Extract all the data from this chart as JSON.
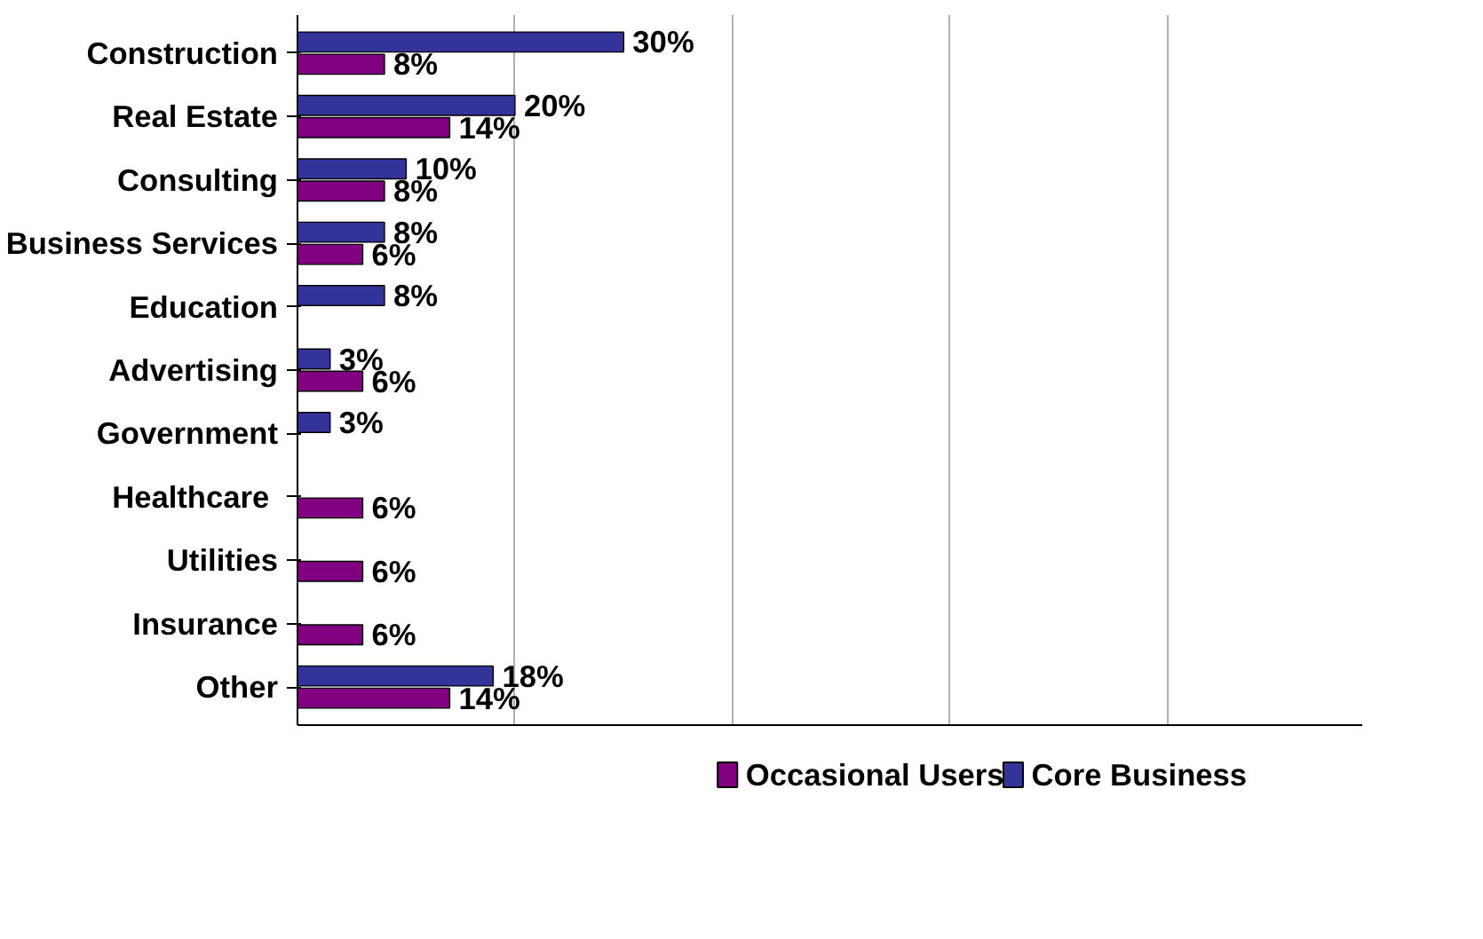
{
  "chart_data": {
    "type": "bar",
    "orientation": "horizontal",
    "categories": [
      "Construction",
      "Real Estate",
      "Consulting",
      "Business Services",
      "Education",
      "Advertising",
      "Government",
      "Healthcare ",
      "Utilities",
      "Insurance",
      "Other"
    ],
    "series": [
      {
        "name": "Occasional Users",
        "color": "#800080",
        "values": [
          8,
          14,
          8,
          6,
          null,
          6,
          null,
          6,
          6,
          6,
          14
        ],
        "value_labels": [
          "8%",
          "14%",
          "8%",
          "6%",
          null,
          "6%",
          null,
          "6%",
          "6%",
          "6%",
          "14%"
        ]
      },
      {
        "name": "Core Business",
        "color": "#333399",
        "values": [
          30,
          20,
          10,
          8,
          8,
          3,
          3,
          null,
          null,
          null,
          18
        ],
        "value_labels": [
          "30%",
          "20%",
          "10%",
          "8%",
          "8%",
          "3%",
          "3%",
          null,
          null,
          null,
          "18%"
        ]
      }
    ],
    "xlim": [
      0,
      98
    ],
    "xticks": [
      {
        "value": 0,
        "label": null
      },
      {
        "value": 20,
        "label": null
      },
      {
        "value": 40,
        "label": null
      },
      {
        "value": 60,
        "label": null
      },
      {
        "value": 80,
        "label": null
      }
    ],
    "tick_labels": "y",
    "grid": "x",
    "legend": "bottom"
  }
}
